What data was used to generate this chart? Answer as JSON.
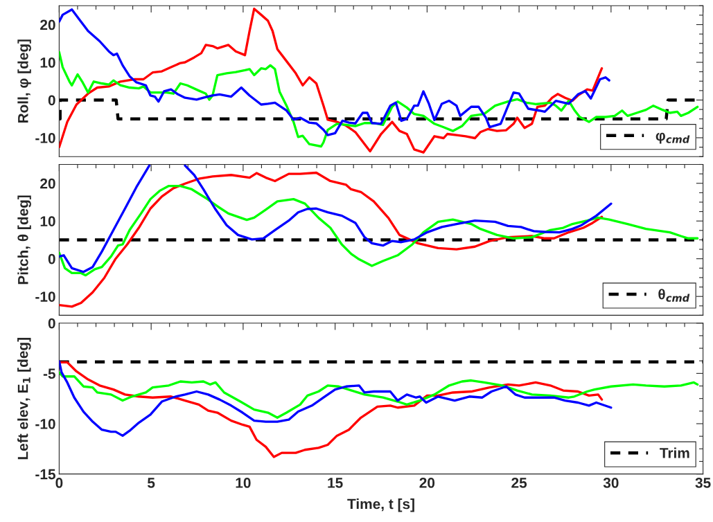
{
  "chart_data": [
    {
      "type": "line",
      "ylabel": "Roll, φ [deg]",
      "xlim": [
        0,
        35
      ],
      "xticks": [
        0,
        5,
        10,
        15,
        20,
        25,
        30,
        35
      ],
      "ylim": [
        -15,
        25
      ],
      "yticks": [
        -10,
        0,
        10,
        20
      ],
      "tick_labels": "y",
      "grid": false,
      "legend": "bottom right",
      "marker": "none",
      "series": [
        {
          "color": "#ff0000",
          "x": [
            0,
            0.44,
            0.94,
            1.57,
            2.07,
            2.7,
            3.33,
            4.08,
            4.58,
            5.08,
            5.58,
            6.08,
            6.59,
            6.84,
            7.34,
            7.72,
            7.97,
            8.34,
            8.6,
            9.2,
            9.6,
            10.1,
            10.35,
            10.6,
            10.98,
            11.35,
            11.6,
            11.86,
            12.36,
            12.86,
            13.24,
            13.6,
            13.98,
            14.37,
            14.6,
            15.1,
            15.6,
            16.1,
            16.9,
            17.5,
            18.1,
            18.5,
            18.9,
            19.3,
            19.8,
            20.4,
            20.9,
            21.1,
            21.6,
            22.1,
            22.6,
            22.9,
            23.3,
            23.8,
            24.3,
            24.7,
            24.9,
            25.3,
            25.7,
            26.0,
            26.4,
            26.8,
            27.1,
            27.5,
            27.9,
            28.2,
            28.7,
            29.0,
            29.5
          ],
          "values": [
            -12.5,
            -5.8,
            -1.2,
            1.7,
            3.3,
            3.6,
            4.9,
            5.5,
            5.5,
            7.3,
            7.6,
            8.7,
            9.8,
            10,
            11.3,
            12.4,
            14.6,
            14.3,
            13.7,
            14.6,
            12.9,
            11.9,
            18.3,
            24.2,
            22.6,
            21,
            18.3,
            13.5,
            10.3,
            7.1,
            3.9,
            6,
            4.4,
            -1.5,
            -5.2,
            -5.8,
            -6.8,
            -8.5,
            -13.6,
            -9,
            -5.8,
            -8.2,
            -9,
            -13.1,
            -13.9,
            -9.6,
            -10.1,
            -9,
            -9.3,
            -9.6,
            -10.1,
            -8.5,
            -7.7,
            -8.2,
            -8,
            -6.3,
            -4.7,
            -7.4,
            -6.3,
            -1.8,
            -1.5,
            0.6,
            1.6,
            0.6,
            -0.2,
            1.2,
            2.8,
            2.5,
            8.4
          ]
        },
        {
          "color": "#00ff00",
          "x": [
            0,
            0.19,
            0.56,
            0.69,
            1.0,
            1.25,
            1.57,
            1.88,
            2.32,
            2.7,
            2.95,
            3.33,
            3.83,
            4.33,
            4.58,
            4.96,
            5.33,
            5.83,
            6.21,
            6.59,
            6.96,
            7.59,
            7.97,
            8.16,
            8.34,
            8.6,
            9.1,
            9.6,
            10.1,
            10.35,
            10.6,
            10.98,
            11.23,
            11.48,
            11.73,
            11.98,
            12.36,
            12.74,
            12.99,
            13.24,
            13.6,
            14.24,
            14.37,
            14.6,
            15.1,
            15.6,
            16.1,
            16.6,
            17.1,
            17.6,
            18.1,
            18.4,
            18.9,
            19.3,
            19.8,
            20.4,
            20.9,
            21.4,
            21.9,
            22.4,
            23.1,
            23.7,
            24.4,
            24.9,
            25.4,
            25.9,
            26.7,
            27.0,
            27.3,
            27.7,
            28.0,
            28.3,
            28.8,
            29.2,
            29.7,
            30.2,
            30.6,
            30.9,
            31.4,
            31.9,
            32.3,
            32.8,
            33.2,
            33.6,
            33.8,
            34.2,
            34.7
          ],
          "values": [
            12.7,
            8.7,
            4.9,
            3.9,
            6.8,
            4.9,
            2,
            4.9,
            4.4,
            4.1,
            5.2,
            3.9,
            3.3,
            3.1,
            3.6,
            2,
            2,
            2,
            1.7,
            4.4,
            3.9,
            2.5,
            1.7,
            0.1,
            1.2,
            6.6,
            7.1,
            7.4,
            7.9,
            8.2,
            6.6,
            8.4,
            8.2,
            9.2,
            8.2,
            2.2,
            -1.5,
            -5.8,
            -9.8,
            -9.5,
            -11.7,
            -12.3,
            -11.2,
            -7.9,
            -6.3,
            -6.6,
            -6.9,
            -6.1,
            -6.1,
            -6.6,
            -1.8,
            -0.4,
            -2,
            -3.7,
            -4.2,
            -6.3,
            -7.2,
            -8.2,
            -6.9,
            -4.2,
            -3.7,
            -1.5,
            -0.4,
            0.2,
            -0.7,
            -1.1,
            -0.7,
            -1.5,
            -2.8,
            -0.2,
            -2.6,
            -4.5,
            -5.8,
            -4.5,
            -4.5,
            -4.2,
            -2.8,
            -4.2,
            -3.4,
            -2.6,
            -1.5,
            -2.6,
            -3.4,
            -3.1,
            -4.2,
            -3.4,
            -1.8
          ]
        },
        {
          "color": "#0000ff",
          "x": [
            0,
            0.19,
            0.69,
            1.07,
            1.57,
            2.2,
            2.7,
            2.95,
            3.14,
            3.45,
            3.83,
            4.2,
            4.71,
            4.96,
            5.2,
            5.4,
            5.7,
            6.08,
            6.46,
            6.84,
            7.47,
            7.84,
            8.34,
            8.72,
            9.35,
            9.9,
            10.35,
            10.98,
            11.35,
            11.73,
            12.36,
            12.74,
            13.1,
            13.6,
            13.98,
            14.37,
            14.6,
            15.0,
            15.4,
            15.76,
            16.1,
            16.5,
            16.75,
            17.0,
            17.5,
            18.0,
            18.3,
            18.6,
            18.9,
            19.3,
            19.5,
            19.8,
            20.1,
            20.4,
            20.8,
            21.2,
            21.6,
            21.8,
            22.4,
            22.8,
            23.2,
            23.4,
            24.0,
            24.7,
            25.0,
            25.5,
            26.1,
            26.4,
            27.0,
            27.7,
            28.2,
            28.6,
            28.9,
            29.4,
            29.7,
            29.9
          ],
          "values": [
            20.8,
            22.6,
            24,
            21.5,
            18.3,
            15.6,
            12.9,
            11.9,
            12.3,
            9.2,
            6.3,
            4.7,
            3.9,
            1.2,
            0.9,
            -0.4,
            2.3,
            2.8,
            1.5,
            0.6,
            0.1,
            0.6,
            1.2,
            1.5,
            0.9,
            3.3,
            1.2,
            -1.2,
            -1,
            -0.7,
            -2.8,
            -5.2,
            -4.7,
            -6,
            -6.2,
            -7.9,
            -9.3,
            -8.8,
            -5.5,
            -6,
            -6.2,
            -3.4,
            -3.4,
            -6.1,
            -6.3,
            -1.5,
            -0.7,
            -5.5,
            -5,
            -1.5,
            -1.5,
            2.3,
            -1,
            -5.3,
            -1,
            -0.2,
            -1.5,
            -4.2,
            -1.8,
            -1.8,
            -4.7,
            -7.2,
            -6.3,
            2,
            1.7,
            -2.3,
            -2.8,
            -3.1,
            -0.2,
            -1,
            1.5,
            2.4,
            0.4,
            5.5,
            6,
            5.2
          ]
        },
        {
          "name": "φ$_{cmd}$",
          "color": "#000000",
          "line_style": "dashed",
          "x": [
            0,
            0.05,
            0.05,
            3.1,
            3.2,
            33.0,
            33.1,
            35
          ],
          "values": [
            -5,
            -5,
            0,
            0,
            -5,
            -5,
            0,
            0
          ]
        }
      ]
    },
    {
      "type": "line",
      "ylabel": "Pitch, θ [deg]",
      "xlim": [
        0,
        35
      ],
      "xticks": [
        0,
        5,
        10,
        15,
        20,
        25,
        30,
        35
      ],
      "ylim": [
        -15,
        25
      ],
      "yticks": [
        -10,
        0,
        10,
        20
      ],
      "tick_labels": "y",
      "grid": false,
      "legend": "bottom right",
      "marker": "none",
      "series": [
        {
          "color": "#ff0000",
          "x": [
            0,
            0.69,
            1.19,
            1.82,
            2.45,
            3.07,
            3.7,
            4.33,
            4.96,
            5.58,
            6.21,
            6.84,
            7.59,
            8.34,
            9.35,
            10.35,
            10.73,
            11.23,
            11.73,
            12.48,
            13.1,
            13.98,
            14.74,
            15.6,
            15.87,
            16.4,
            17.1,
            17.9,
            18.5,
            19.5,
            20.6,
            21.6,
            22.6,
            23.4,
            24.4,
            25.7,
            26.4,
            26.9,
            27.7,
            28.5,
            29.0,
            29.5
          ],
          "values": [
            -12.3,
            -12.7,
            -11.7,
            -8.9,
            -5.1,
            0,
            3.8,
            8.2,
            13.3,
            16.5,
            18.7,
            19.9,
            21.2,
            21.8,
            22.2,
            21.5,
            22.7,
            21.5,
            20.6,
            22.5,
            22.5,
            22.8,
            20.6,
            19.6,
            18.4,
            17.7,
            15.2,
            10.8,
            6.3,
            4.1,
            2.8,
            2.5,
            3.2,
            4.7,
            5.7,
            6,
            5.4,
            5.4,
            7,
            8.2,
            9.5,
            11.1
          ]
        },
        {
          "color": "#00ff00",
          "x": [
            0,
            0.31,
            0.69,
            1.19,
            1.44,
            1.94,
            2.32,
            2.82,
            3.2,
            3.45,
            3.83,
            4.45,
            4.96,
            5.46,
            5.96,
            6.59,
            7.21,
            7.97,
            8.6,
            9.2,
            10.2,
            10.6,
            11.23,
            11.86,
            12.74,
            13.36,
            14.11,
            14.74,
            15.36,
            15.87,
            16.25,
            17.0,
            17.6,
            18.4,
            19.2,
            19.8,
            20.6,
            21.4,
            22.4,
            22.9,
            23.8,
            24.7,
            25.7,
            26.7,
            27.4,
            27.9,
            28.7,
            29.3,
            29.9,
            30.9,
            31.9,
            33.2,
            33.8,
            34.2,
            34.7
          ],
          "values": [
            1.6,
            -2.5,
            -3.8,
            -3.8,
            -4.4,
            -2.8,
            -2.2,
            0.6,
            3.5,
            3.8,
            7.6,
            12,
            15.8,
            18,
            19.3,
            19.3,
            18.4,
            16.1,
            13.9,
            12,
            10.3,
            10.9,
            13,
            15.2,
            15.8,
            14.6,
            10.8,
            8.2,
            3.8,
            1.3,
            0,
            -1.9,
            -0.6,
            0.9,
            3.8,
            7,
            9.8,
            10.4,
            9.2,
            7.9,
            6.3,
            5.4,
            5.7,
            7.6,
            8.2,
            9.2,
            10.1,
            10.9,
            10.4,
            9.2,
            7.9,
            7,
            6,
            5.4,
            5.4
          ]
        },
        {
          "color": "#0000ff",
          "x": [
            0,
            0.25,
            0.69,
            1.32,
            1.82,
            2.32,
            2.95,
            3.58,
            4.2,
            4.9,
            5.9,
            6.84,
            7.34,
            7.84,
            8.47,
            9.1,
            9.72,
            10.48,
            11.1,
            11.73,
            12.48,
            12.99,
            13.49,
            13.98,
            14.6,
            15.37,
            15.87,
            16.1,
            16.6,
            17.0,
            17.6,
            18.1,
            18.6,
            19.3,
            20.0,
            20.8,
            21.6,
            22.6,
            23.7,
            24.4,
            25.1,
            25.8,
            26.4,
            27.2,
            27.9,
            28.4,
            29.2,
            30.0
          ],
          "values": [
            0.6,
            0.9,
            -2.5,
            -3.5,
            -2.2,
            1.9,
            7.6,
            13.3,
            19,
            24.7,
            null,
            24.7,
            22.2,
            18.4,
            13.3,
            8.9,
            6.3,
            5.1,
            5.4,
            7.6,
            10.1,
            12.3,
            13.2,
            13.3,
            12.3,
            11.4,
            10.1,
            9.5,
            5.7,
            4.1,
            3.5,
            4.7,
            4.4,
            5.1,
            7,
            8.4,
            9.2,
            10.1,
            9.8,
            8.7,
            8.4,
            7.3,
            7.1,
            7,
            7.9,
            8.9,
            11.4,
            14.6
          ]
        },
        {
          "name": "θ$_{cmd}$",
          "color": "#000000",
          "line_style": "dashed",
          "x": [
            0,
            35
          ],
          "values": [
            5,
            5
          ]
        }
      ]
    },
    {
      "type": "line",
      "xlabel": "Time, t [s]",
      "ylabel": "Left elev, E$_{1}$ [deg]",
      "xlim": [
        0,
        35
      ],
      "xticks": [
        0,
        5,
        10,
        15,
        20,
        25,
        30,
        35
      ],
      "ylim": [
        -15,
        0
      ],
      "yticks": [
        -15,
        -10,
        -5,
        0
      ],
      "grid": false,
      "legend": "bottom right",
      "marker": "none",
      "series": [
        {
          "color": "#ff0000",
          "x": [
            0,
            0.44,
            0.94,
            1.57,
            2.2,
            2.95,
            3.58,
            4.33,
            5.08,
            6.08,
            6.84,
            7.59,
            8.1,
            8.6,
            9.35,
            9.97,
            10.35,
            10.73,
            11.23,
            11.67,
            12.1,
            12.86,
            13.36,
            14.1,
            14.6,
            15.1,
            15.75,
            16.4,
            17.3,
            18.0,
            18.4,
            19.3,
            20.0,
            20.6,
            21.4,
            22.4,
            23.4,
            24.4,
            25.0,
            25.9,
            26.7,
            27.4,
            28.2,
            28.8,
            29.3,
            29.5
          ],
          "values": [
            -3.9,
            -3.9,
            -4.8,
            -5.6,
            -6.2,
            -6.6,
            -7.1,
            -7.3,
            -7.4,
            -7.3,
            -7.7,
            -8.1,
            -8.7,
            -8.9,
            -9.7,
            -10.1,
            -10.3,
            -11.6,
            -12.3,
            -13.3,
            -12.9,
            -12.9,
            -12.6,
            -12.4,
            -12.1,
            -11.2,
            -10.6,
            -9.4,
            -8.3,
            -8.2,
            -8.4,
            -8.2,
            -7.2,
            -7.2,
            -6.9,
            -6.8,
            -6.4,
            -6.1,
            -6.2,
            -5.9,
            -6.2,
            -6.7,
            -6.8,
            -7.2,
            -7.1,
            -7.6
          ]
        },
        {
          "color": "#00ff00",
          "x": [
            0,
            0.19,
            0.82,
            1.32,
            1.82,
            2.07,
            2.82,
            3.45,
            3.95,
            4.71,
            5.08,
            5.96,
            6.59,
            7.21,
            7.84,
            8.2,
            8.5,
            8.97,
            9.85,
            10.6,
            11.35,
            11.86,
            12.36,
            13.1,
            13.5,
            14.1,
            14.6,
            15.2,
            15.9,
            16.6,
            17.6,
            18.4,
            18.9,
            19.6,
            20.4,
            21.2,
            21.9,
            22.4,
            23.1,
            24.1,
            24.9,
            25.7,
            26.7,
            27.7,
            28.0,
            28.7,
            29.1,
            30.0,
            31.2,
            31.9,
            32.9,
            33.8,
            34.5,
            34.7
          ],
          "values": [
            -4.9,
            -5.3,
            -5.3,
            -6.3,
            -6.4,
            -6.9,
            -7.1,
            -7.7,
            -7.3,
            -6.9,
            -6.4,
            -6.2,
            -5.8,
            -5.9,
            -5.8,
            -6.1,
            -5.9,
            -6.9,
            -7.8,
            -8.6,
            -8.9,
            -9.4,
            -8.9,
            -8.1,
            -7.2,
            -6.8,
            -6.2,
            -6.3,
            -6.7,
            -7.1,
            -7.4,
            -7.8,
            -8.1,
            -7.7,
            -7.1,
            -6.2,
            -5.8,
            -5.7,
            -5.9,
            -6.2,
            -6.7,
            -7.1,
            -7.2,
            -7.4,
            -7.3,
            -6.8,
            -6.6,
            -6.3,
            -6.1,
            -6.2,
            -6.3,
            -6.2,
            -5.9,
            -6.1
          ]
        },
        {
          "color": "#0000ff",
          "x": [
            0,
            0.13,
            0.44,
            0.82,
            1.32,
            1.82,
            2.32,
            2.82,
            3.07,
            3.45,
            3.83,
            4.33,
            4.96,
            5.58,
            6.34,
            6.84,
            7.47,
            8.1,
            8.72,
            9.35,
            9.97,
            10.6,
            11.23,
            11.86,
            12.48,
            12.99,
            13.74,
            14.37,
            15.0,
            15.6,
            16.3,
            16.6,
            17.1,
            18.0,
            18.4,
            18.9,
            19.4,
            19.6,
            19.95,
            20.6,
            21.5,
            22.3,
            23.0,
            23.5,
            24.3,
            24.8,
            25.3,
            26.2,
            26.9,
            27.5,
            28.2,
            28.8,
            29.2,
            30.0
          ],
          "values": [
            -3.8,
            -4.9,
            -5.9,
            -7.4,
            -8.8,
            -9.8,
            -10.6,
            -10.8,
            -10.8,
            -11.2,
            -10.7,
            -9.9,
            -9.1,
            -7.8,
            -7.3,
            -7.1,
            -6.8,
            -7.1,
            -7.6,
            -8.2,
            -8.9,
            -9.7,
            -9.8,
            -9.8,
            -9.6,
            -8.8,
            -8.2,
            -7.4,
            -6.6,
            -6.3,
            -6.2,
            -6.9,
            -6.8,
            -6.8,
            -7.7,
            -7.1,
            -7.4,
            -7.3,
            -7.9,
            -7.3,
            -7.7,
            -7.3,
            -7.4,
            -6.8,
            -6.3,
            -7.1,
            -7.4,
            -7.4,
            -7.4,
            -7.7,
            -7.9,
            -8.2,
            -7.9,
            -8.4
          ]
        },
        {
          "name": "Trim",
          "color": "#000000",
          "line_style": "dashed",
          "x": [
            0,
            35
          ],
          "values": [
            -3.85,
            -3.85
          ]
        }
      ]
    }
  ]
}
